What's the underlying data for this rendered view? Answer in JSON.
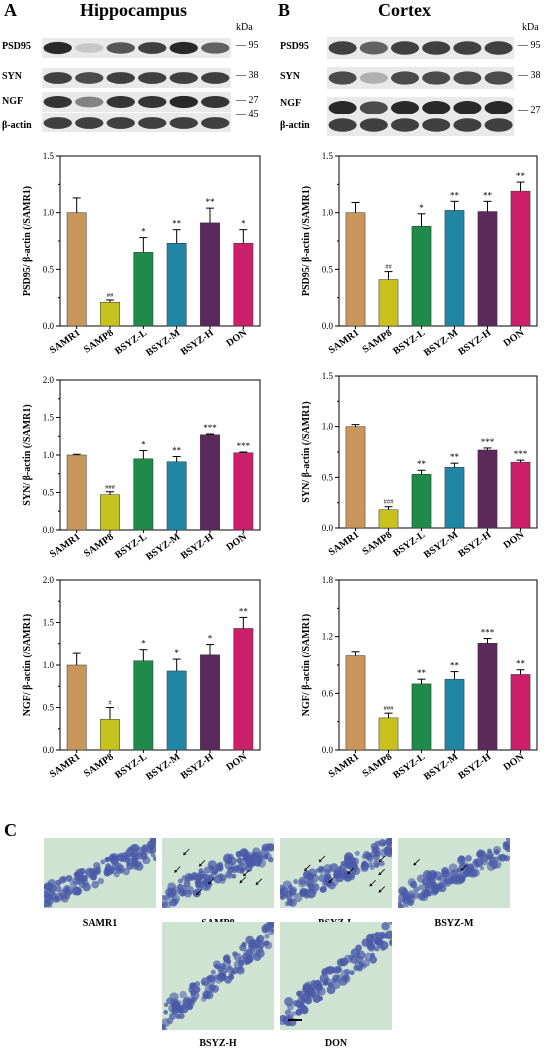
{
  "panels": {
    "A": {
      "letter": "A",
      "title": "Hippocampus"
    },
    "B": {
      "letter": "B",
      "title": "Cortex"
    },
    "C": {
      "letter": "C"
    }
  },
  "blots": {
    "kda_label": "kDa",
    "rows": [
      {
        "protein": "PSD95",
        "mw": "95"
      },
      {
        "protein": "SYN",
        "mw": "38"
      },
      {
        "protein": "NGF",
        "mw": "27"
      },
      {
        "protein": "β-actin",
        "mw": "45"
      }
    ],
    "hippocampus_intensity": [
      [
        0.95,
        0.25,
        0.75,
        0.85,
        0.95,
        0.7
      ],
      [
        0.85,
        0.8,
        0.85,
        0.85,
        0.85,
        0.85
      ],
      [
        0.9,
        0.55,
        0.9,
        0.9,
        0.95,
        0.9
      ],
      [
        0.85,
        0.85,
        0.85,
        0.85,
        0.85,
        0.85
      ]
    ],
    "cortex_intensity": [
      [
        0.85,
        0.7,
        0.85,
        0.85,
        0.85,
        0.85
      ],
      [
        0.8,
        0.35,
        0.8,
        0.8,
        0.8,
        0.8
      ],
      [
        0.95,
        0.8,
        0.95,
        0.95,
        0.95,
        0.95
      ],
      [
        0.85,
        0.85,
        0.85,
        0.85,
        0.85,
        0.85
      ]
    ]
  },
  "colors": {
    "SAMR1": "#c8965a",
    "SAMP8": "#c8c21e",
    "BSYZ-L": "#1f8a4a",
    "BSYZ-M": "#1f86a6",
    "BSYZ-H": "#5c2a5a",
    "DON": "#cc1f6a"
  },
  "chart_data": [
    {
      "type": "bar",
      "panel": "A",
      "categories": [
        "SAMR1",
        "SAMP8",
        "BSYZ-L",
        "BSYZ-M",
        "BSYZ-H",
        "DON"
      ],
      "values": [
        1.0,
        0.21,
        0.65,
        0.73,
        0.91,
        0.73
      ],
      "errors": [
        0.13,
        0.02,
        0.13,
        0.12,
        0.13,
        0.12
      ],
      "annotations": [
        "",
        "##",
        "*",
        "**",
        "**",
        "*"
      ],
      "ylabel": "PSD95/ β-actin (/SAMR1)",
      "ylim": [
        0,
        1.5
      ],
      "yticks": [
        "0.0",
        "0.5",
        "1.0",
        "1.5"
      ]
    },
    {
      "type": "bar",
      "panel": "B",
      "categories": [
        "SAMR1",
        "SAMP8",
        "BSYZ-L",
        "BSYZ-M",
        "BSYZ-H",
        "DON"
      ],
      "values": [
        1.0,
        0.41,
        0.88,
        1.02,
        1.01,
        1.19
      ],
      "errors": [
        0.09,
        0.07,
        0.11,
        0.08,
        0.09,
        0.08
      ],
      "annotations": [
        "",
        "##",
        "*",
        "**",
        "**",
        "**"
      ],
      "ylabel": "PSD95/ β-actin (/SAMR1)",
      "ylim": [
        0,
        1.5
      ],
      "yticks": [
        "0.0",
        "0.5",
        "1.0",
        "1.5"
      ]
    },
    {
      "type": "bar",
      "panel": "A",
      "categories": [
        "SAMR1",
        "SAMP8",
        "BSYZ-L",
        "BSYZ-M",
        "BSYZ-H",
        "DON"
      ],
      "values": [
        1.0,
        0.47,
        0.95,
        0.91,
        1.27,
        1.03
      ],
      "errors": [
        0.01,
        0.04,
        0.11,
        0.07,
        0.01,
        0.01
      ],
      "annotations": [
        "",
        "###",
        "*",
        "**",
        "***",
        "***"
      ],
      "ylabel": "SYN/ β-actin (/SAMR1)",
      "ylim": [
        0,
        2.0
      ],
      "yticks": [
        "0.0",
        "0.5",
        "1.0",
        "1.5",
        "2.0"
      ]
    },
    {
      "type": "bar",
      "panel": "B",
      "categories": [
        "SAMR1",
        "SAMP8",
        "BSYZ-L",
        "BSYZ-M",
        "BSYZ-H",
        "DON"
      ],
      "values": [
        1.0,
        0.18,
        0.53,
        0.6,
        0.77,
        0.65
      ],
      "errors": [
        0.02,
        0.03,
        0.04,
        0.04,
        0.02,
        0.02
      ],
      "annotations": [
        "",
        "###",
        "**",
        "**",
        "***",
        "***"
      ],
      "ylabel": "SYN/ β-actin (/SAMR1)",
      "ylim": [
        0,
        1.5
      ],
      "yticks": [
        "0.0",
        "0.5",
        "1.0",
        "1.5"
      ]
    },
    {
      "type": "bar",
      "panel": "A",
      "categories": [
        "SAMR1",
        "SAMP8",
        "BSYZ-L",
        "BSYZ-M",
        "BSYZ-H",
        "DON"
      ],
      "values": [
        1.0,
        0.36,
        1.05,
        0.93,
        1.12,
        1.43
      ],
      "errors": [
        0.14,
        0.14,
        0.13,
        0.14,
        0.12,
        0.13
      ],
      "annotations": [
        "",
        "#",
        "*",
        "*",
        "*",
        "**"
      ],
      "ylabel": "NGF/ β-actin (/SAMR1)",
      "ylim": [
        0,
        2.0
      ],
      "yticks": [
        "0.0",
        "0.5",
        "1.0",
        "1.5",
        "2.0"
      ]
    },
    {
      "type": "bar",
      "panel": "B",
      "categories": [
        "SAMR1",
        "SAMP8",
        "BSYZ-L",
        "BSYZ-M",
        "BSYZ-H",
        "DON"
      ],
      "values": [
        1.0,
        0.34,
        0.7,
        0.75,
        1.13,
        0.8
      ],
      "errors": [
        0.04,
        0.05,
        0.05,
        0.08,
        0.05,
        0.05
      ],
      "annotations": [
        "",
        "###",
        "**",
        "**",
        "***",
        "**"
      ],
      "ylabel": "NGF/ β-actin (/SAMR1)",
      "ylim": [
        0,
        1.8
      ],
      "yticks": [
        "0.0",
        "0.6",
        "1.2",
        "1.8"
      ]
    }
  ],
  "histology": {
    "labels": [
      "SAMR1",
      "SAMP8",
      "BSYZ-L",
      "BSYZ-M",
      "BSYZ-H",
      "DON"
    ],
    "arrows": [
      0,
      8,
      8,
      2,
      0,
      0
    ],
    "band_color": "#4a5aa8",
    "background_color": "#cfe3d2"
  }
}
